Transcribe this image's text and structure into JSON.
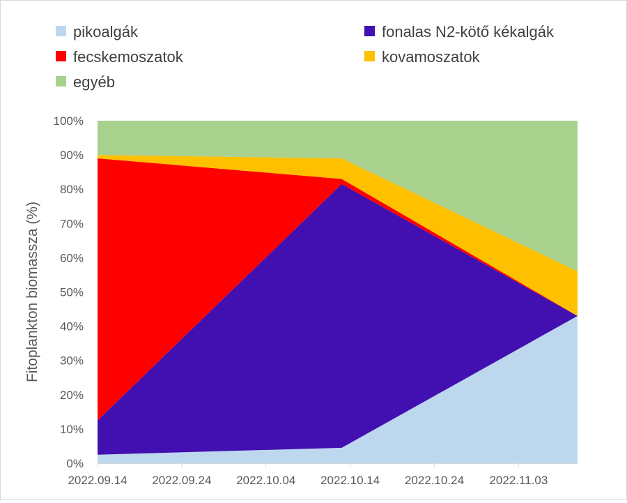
{
  "chart_data": {
    "type": "area",
    "stacked": true,
    "percent": true,
    "x": [
      "2022.09.14",
      "2022.10.13",
      "2022.11.10"
    ],
    "xticks": [
      "2022.09.14",
      "2022.09.24",
      "2022.10.04",
      "2022.10.14",
      "2022.10.24",
      "2022.11.03"
    ],
    "yticks": [
      "0%",
      "10%",
      "20%",
      "30%",
      "40%",
      "50%",
      "60%",
      "70%",
      "80%",
      "90%",
      "100%"
    ],
    "ylim": [
      0,
      100
    ],
    "ylabel": "Fitoplankton biomassza (%)",
    "xlabel": "",
    "legend_position": "top",
    "grid": false,
    "series": [
      {
        "name": "pikoalgák",
        "color": "#bdd7ee",
        "values": [
          2.5,
          4.5,
          43
        ]
      },
      {
        "name": "fonalas N2-kötő kékalgák",
        "color": "#4210b0",
        "values": [
          10,
          77,
          0
        ]
      },
      {
        "name": "fecskemoszatok",
        "color": "#ff0000",
        "values": [
          76.5,
          1.5,
          0
        ]
      },
      {
        "name": "kovamoszatok",
        "color": "#ffc000",
        "values": [
          1,
          6,
          13
        ]
      },
      {
        "name": "egyéb",
        "color": "#a9d18e",
        "values": [
          10,
          11,
          44
        ]
      }
    ]
  }
}
